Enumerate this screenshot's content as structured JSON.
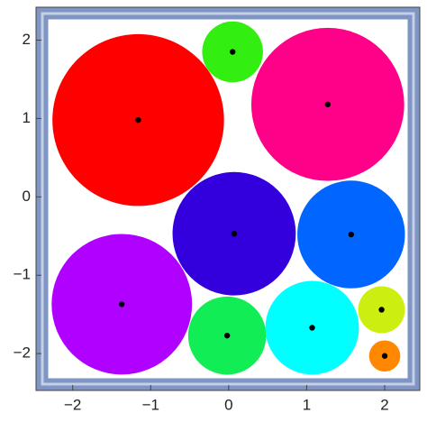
{
  "chart_data": {
    "type": "bubble",
    "xlim": [
      -2.47,
      2.45
    ],
    "ylim": [
      -2.47,
      2.42
    ],
    "xticks": [
      {
        "value": -2,
        "label": "−2"
      },
      {
        "value": -1,
        "label": "−1"
      },
      0,
      1,
      2
    ],
    "yticks": [
      {
        "value": -2,
        "label": "−2"
      },
      {
        "value": -1,
        "label": "−1"
      },
      0,
      1,
      2
    ],
    "series": [
      {
        "x": [
          -1.16
        ],
        "values": [
          0.98
        ],
        "sizes": [
          1.1
        ],
        "color": "#ff0000"
      },
      {
        "x": [
          0.05
        ],
        "values": [
          1.85
        ],
        "sizes": [
          0.39
        ],
        "color": "#33ee11"
      },
      {
        "x": [
          1.27
        ],
        "values": [
          1.18
        ],
        "sizes": [
          0.98
        ],
        "color": "#ff0088"
      },
      {
        "x": [
          0.07
        ],
        "values": [
          -0.47
        ],
        "sizes": [
          0.79
        ],
        "color": "#3300dd"
      },
      {
        "x": [
          1.57
        ],
        "values": [
          -0.48
        ],
        "sizes": [
          0.69
        ],
        "color": "#0066ff"
      },
      {
        "x": [
          -1.37
        ],
        "values": [
          -1.37
        ],
        "sizes": [
          0.9
        ],
        "color": "#b000ff"
      },
      {
        "x": [
          -0.02
        ],
        "values": [
          -1.77
        ],
        "sizes": [
          0.5
        ],
        "color": "#11ee55"
      },
      {
        "x": [
          1.07
        ],
        "values": [
          -1.67
        ],
        "sizes": [
          0.6
        ],
        "color": "#00ffff"
      },
      {
        "x": [
          1.96
        ],
        "values": [
          -1.44
        ],
        "sizes": [
          0.3
        ],
        "color": "#ccee11"
      },
      {
        "x": [
          2.0
        ],
        "values": [
          -2.03
        ],
        "sizes": [
          0.2
        ],
        "color": "#ff8800"
      }
    ]
  }
}
